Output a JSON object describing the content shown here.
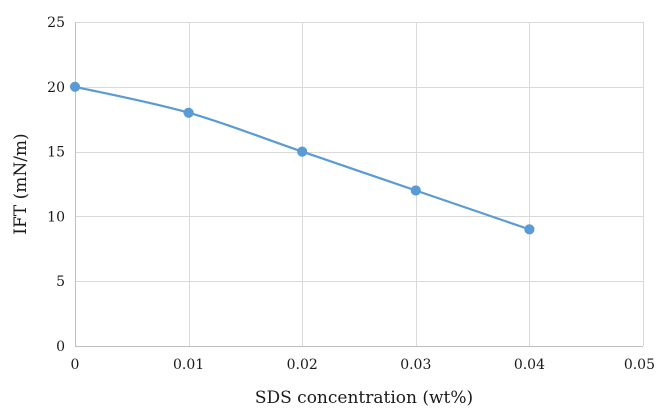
{
  "chart_data": {
    "type": "line",
    "title": "",
    "xlabel": "SDS concentration (wt%)",
    "ylabel": "IFT (mN/m)",
    "xlim": [
      0,
      0.05
    ],
    "ylim": [
      0,
      25
    ],
    "x_ticks": [
      0,
      0.01,
      0.02,
      0.03,
      0.04,
      0.05
    ],
    "y_ticks": [
      0,
      5,
      10,
      15,
      20,
      25
    ],
    "x_tick_labels": [
      "0",
      "0.01",
      "0.02",
      "0.03",
      "0.04",
      "0.05"
    ],
    "y_tick_labels": [
      "0",
      "5",
      "10",
      "15",
      "20",
      "25"
    ],
    "grid": true,
    "smooth": true,
    "series": [
      {
        "color": "#5b9bd5",
        "marker": "circle",
        "x": [
          0,
          0.01,
          0.02,
          0.03,
          0.04
        ],
        "y": [
          20,
          18,
          15,
          12,
          9
        ]
      }
    ]
  }
}
